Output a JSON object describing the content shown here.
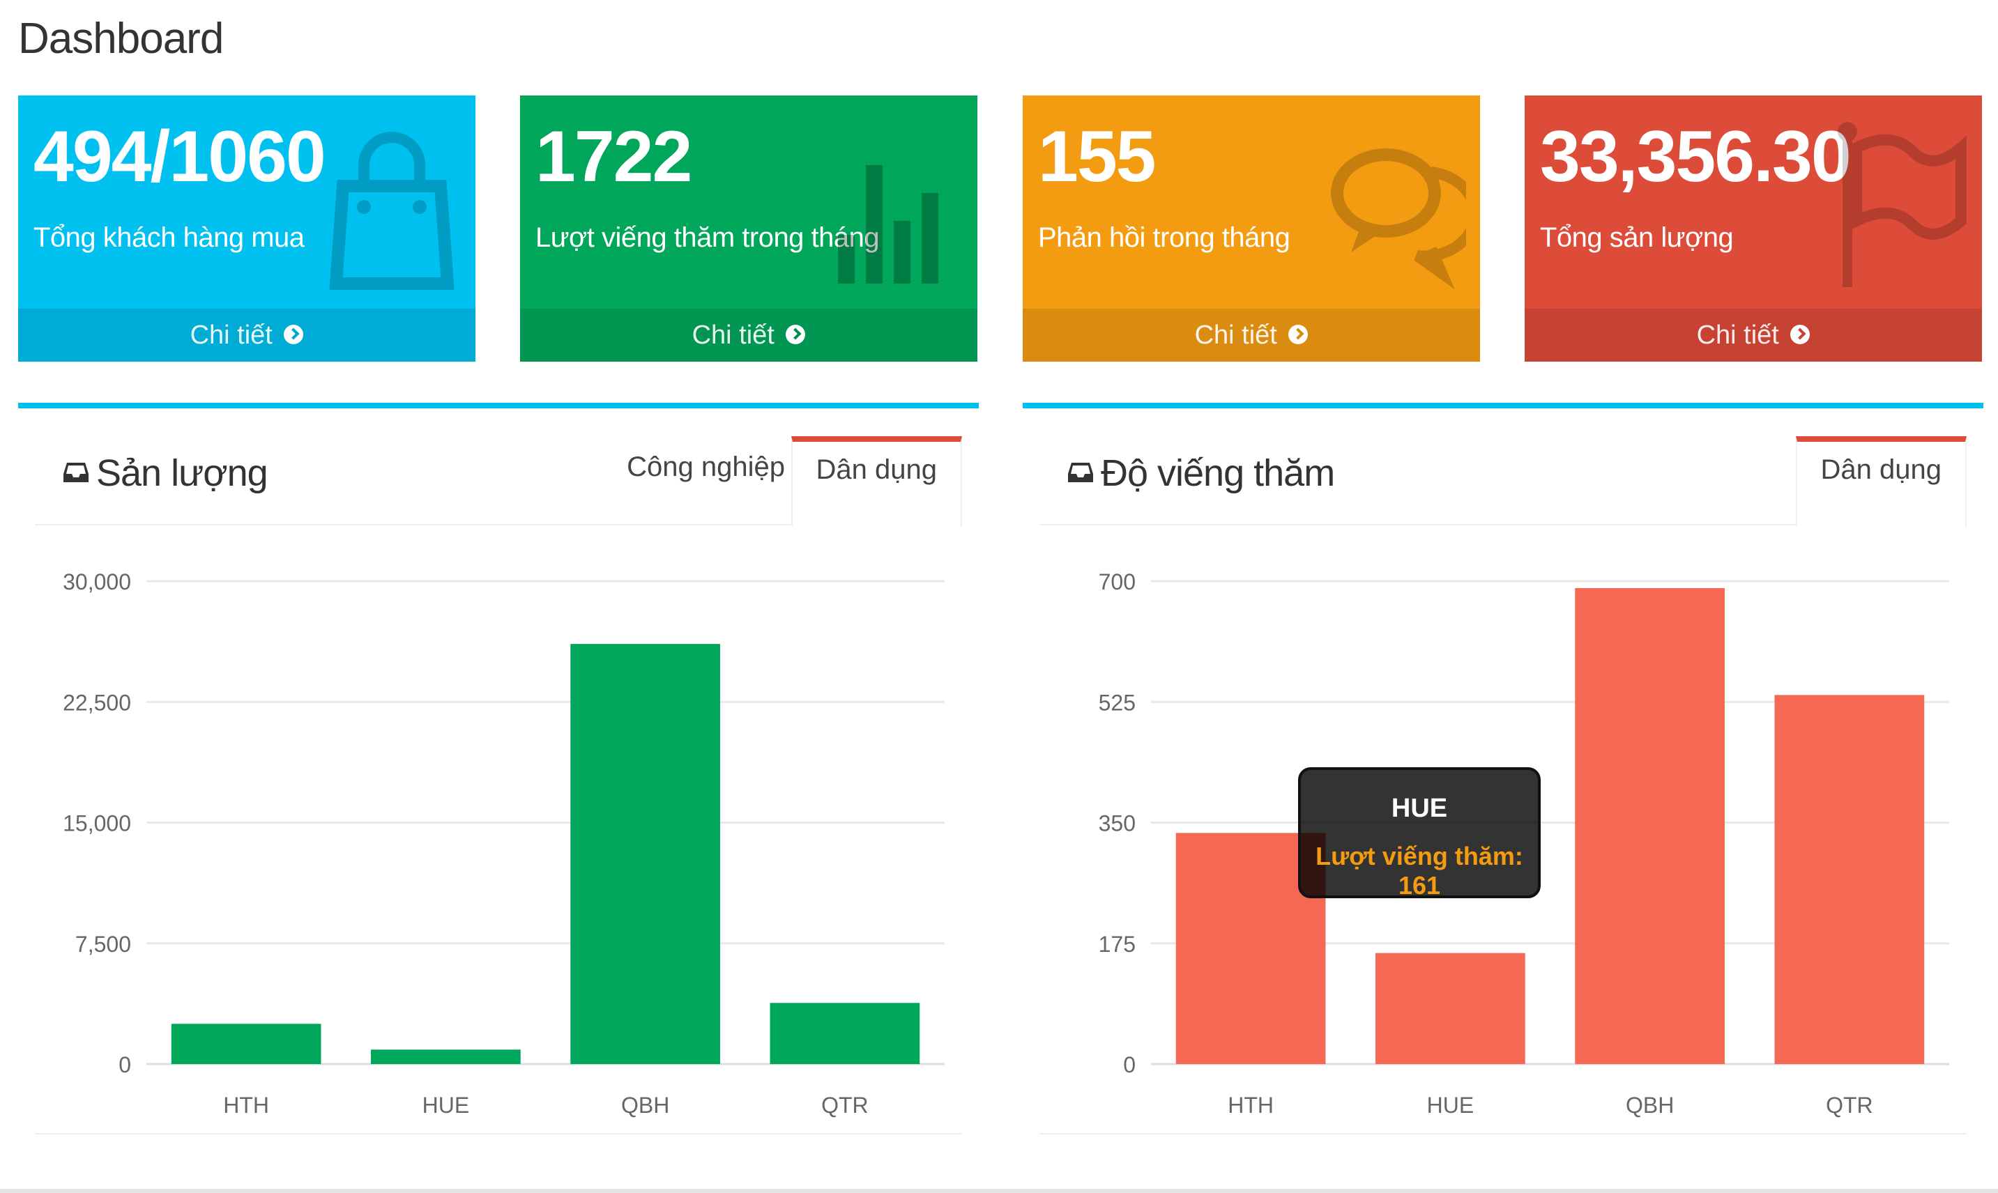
{
  "page": {
    "title": "Dashboard"
  },
  "stat_boxes": [
    {
      "value": "494/1060",
      "label": "Tổng khách hàng mua",
      "footer": "Chi tiết",
      "color": "#00c0ef",
      "icon": "shopping-bag-icon"
    },
    {
      "value": "1722",
      "label": "Lượt viếng thăm trong tháng",
      "footer": "Chi tiết",
      "color": "#00a65a",
      "icon": "bar-chart-icon"
    },
    {
      "value": "155",
      "label": "Phản hồi trong tháng",
      "footer": "Chi tiết",
      "color": "#f39c12",
      "icon": "comments-icon"
    },
    {
      "value": "33,356.30",
      "label": "Tổng sản lượng",
      "footer": "Chi tiết",
      "color": "#dd4b39",
      "icon": "flag-icon"
    }
  ],
  "panels": {
    "production": {
      "title": "Sản lượng",
      "icon": "inbox-icon",
      "tabs": [
        {
          "label": "Công nghiệp",
          "active": false
        },
        {
          "label": "Dân dụng",
          "active": true
        }
      ]
    },
    "visits": {
      "title": "Độ viếng thăm",
      "icon": "inbox-icon",
      "tabs": [
        {
          "label": "Dân dụng",
          "active": true
        }
      ],
      "tooltip": {
        "title": "HUE",
        "key": "Lượt viếng thăm",
        "value": "161"
      }
    }
  },
  "chart_data": [
    {
      "type": "bar",
      "categories": [
        "HTH",
        "HUE",
        "QBH",
        "QTR"
      ],
      "values": [
        2500,
        900,
        26100,
        3800
      ],
      "yticks": [
        "0",
        "7,500",
        "15,000",
        "22,500",
        "30,000"
      ],
      "ylim": [
        0,
        30000
      ],
      "color": "#00a65a",
      "title": "",
      "xlabel": "",
      "ylabel": "",
      "grid": true
    },
    {
      "type": "bar",
      "categories": [
        "HTH",
        "HUE",
        "QBH",
        "QTR"
      ],
      "values": [
        335,
        161,
        690,
        535
      ],
      "yticks": [
        "0",
        "175",
        "350",
        "525",
        "700"
      ],
      "ylim": [
        0,
        700
      ],
      "color": "#f56954",
      "title": "",
      "xlabel": "",
      "ylabel": "",
      "grid": true
    }
  ]
}
